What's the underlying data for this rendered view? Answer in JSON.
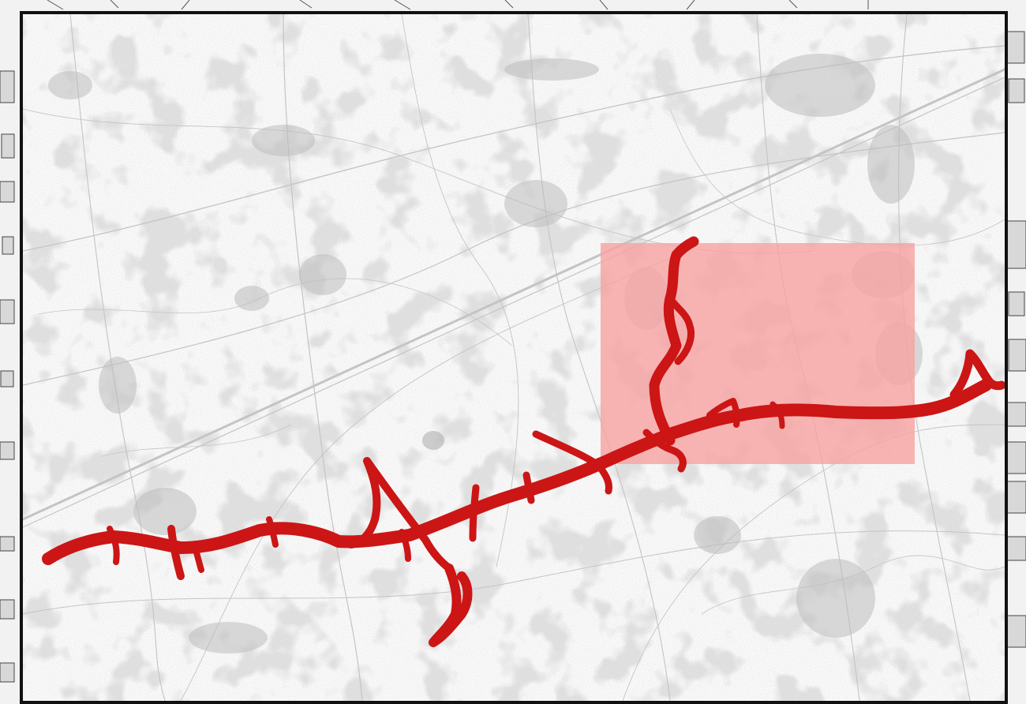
{
  "map": {
    "base_layer": "topographic-base-map-grayscale",
    "base_color": "#c9c9c9",
    "background_color": "#fbfbfb",
    "frame_color": "#111111",
    "route": {
      "description": "route-trace",
      "color": "#cc1515"
    },
    "highlight_area": {
      "color": "#f7a1a1"
    }
  }
}
